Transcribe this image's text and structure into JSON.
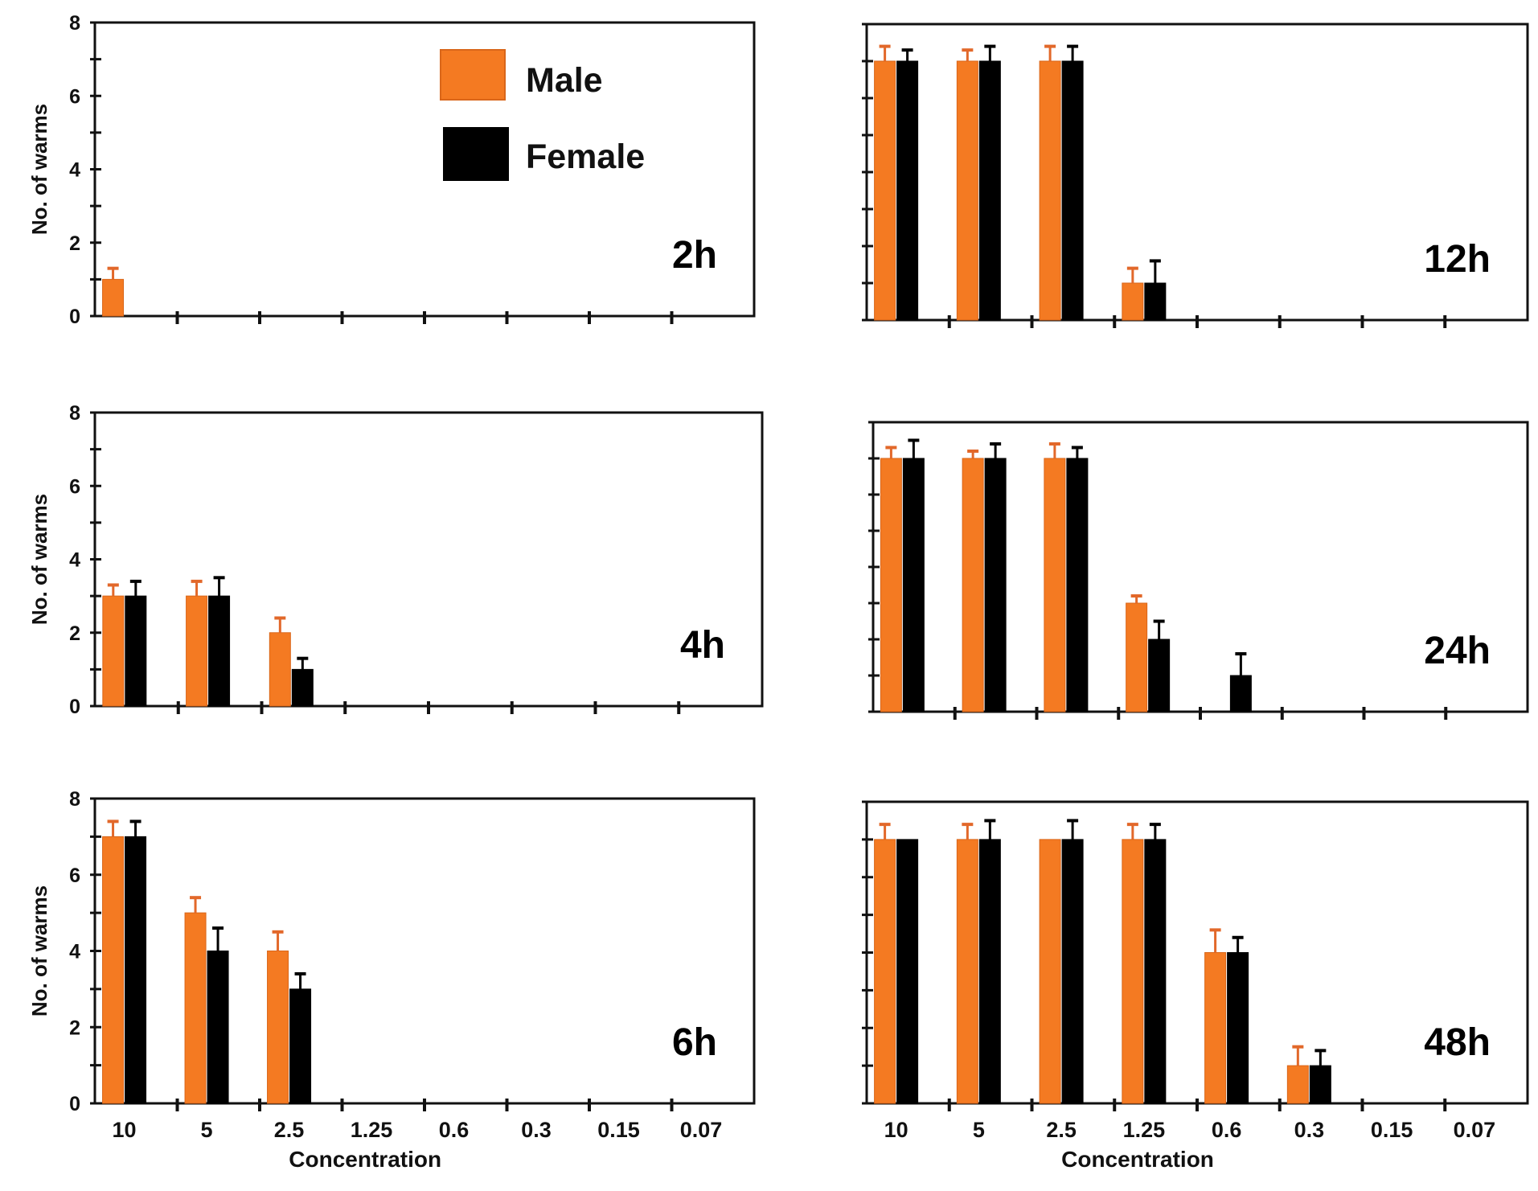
{
  "chart_data": [
    {
      "type": "bar",
      "title": "2h",
      "ylabel": "No. of warms",
      "xlabel": "",
      "ylim": [
        0,
        8
      ],
      "yticks": [
        "0",
        "2",
        "4",
        "6",
        "8"
      ],
      "categories": [
        "10",
        "5",
        "2.5",
        "1.25",
        "0.6",
        "0.3",
        "0.15",
        "0.07"
      ],
      "show_category_labels": false,
      "series": [
        {
          "name": "Male",
          "values": [
            1,
            0,
            0,
            0,
            0,
            0,
            0,
            0
          ],
          "errors": [
            0.3,
            0,
            0,
            0,
            0,
            0,
            0,
            0
          ]
        },
        {
          "name": "Female",
          "values": [
            0,
            0,
            0,
            0,
            0,
            0,
            0,
            0
          ],
          "errors": [
            0,
            0,
            0,
            0,
            0,
            0,
            0,
            0
          ]
        }
      ]
    },
    {
      "type": "bar",
      "title": "12h",
      "ylabel": "",
      "xlabel": "",
      "ylim": [
        0,
        8
      ],
      "yticks": [],
      "categories": [
        "10",
        "5",
        "2.5",
        "1.25",
        "0.6",
        "0.3",
        "0.15",
        "0.07"
      ],
      "show_category_labels": false,
      "series": [
        {
          "name": "Male",
          "values": [
            7,
            7,
            7,
            1,
            0,
            0,
            0,
            0
          ],
          "errors": [
            0.4,
            0.3,
            0.4,
            0.4,
            0,
            0,
            0,
            0
          ]
        },
        {
          "name": "Female",
          "values": [
            7,
            7,
            7,
            1,
            0,
            0,
            0,
            0
          ],
          "errors": [
            0.3,
            0.4,
            0.4,
            0.6,
            0,
            0,
            0,
            0
          ]
        }
      ]
    },
    {
      "type": "bar",
      "title": "4h",
      "ylabel": "No. of warms",
      "xlabel": "",
      "ylim": [
        0,
        8
      ],
      "yticks": [
        "0",
        "2",
        "4",
        "6",
        "8"
      ],
      "categories": [
        "10",
        "5",
        "2.5",
        "1.25",
        "0.6",
        "0.3",
        "0.15",
        "0.07"
      ],
      "show_category_labels": false,
      "series": [
        {
          "name": "Male",
          "values": [
            3,
            3,
            2,
            0,
            0,
            0,
            0,
            0
          ],
          "errors": [
            0.3,
            0.4,
            0.4,
            0,
            0,
            0,
            0,
            0
          ]
        },
        {
          "name": "Female",
          "values": [
            3,
            3,
            1,
            0,
            0,
            0,
            0,
            0
          ],
          "errors": [
            0.4,
            0.5,
            0.3,
            0,
            0,
            0,
            0,
            0
          ]
        }
      ]
    },
    {
      "type": "bar",
      "title": "24h",
      "ylabel": "",
      "xlabel": "",
      "ylim": [
        0,
        8
      ],
      "yticks": [],
      "categories": [
        "10",
        "5",
        "2.5",
        "1.25",
        "0.6",
        "0.3",
        "0.15",
        "0.07"
      ],
      "show_category_labels": false,
      "series": [
        {
          "name": "Male",
          "values": [
            7,
            7,
            7,
            3,
            0,
            0,
            0,
            0
          ],
          "errors": [
            0.3,
            0.2,
            0.4,
            0.2,
            0,
            0,
            0,
            0
          ]
        },
        {
          "name": "Female",
          "values": [
            7,
            7,
            7,
            2,
            1,
            0,
            0,
            0
          ],
          "errors": [
            0.5,
            0.4,
            0.3,
            0.5,
            0.6,
            0,
            0,
            0
          ]
        }
      ]
    },
    {
      "type": "bar",
      "title": "6h",
      "ylabel": "No. of warms",
      "xlabel": "Concentration",
      "ylim": [
        0,
        8
      ],
      "yticks": [
        "0",
        "2",
        "4",
        "6",
        "8"
      ],
      "categories": [
        "10",
        "5",
        "2.5",
        "1.25",
        "0.6",
        "0.3",
        "0.15",
        "0.07"
      ],
      "show_category_labels": true,
      "series": [
        {
          "name": "Male",
          "values": [
            7,
            5,
            4,
            0,
            0,
            0,
            0,
            0
          ],
          "errors": [
            0.4,
            0.4,
            0.5,
            0,
            0,
            0,
            0,
            0
          ]
        },
        {
          "name": "Female",
          "values": [
            7,
            4,
            3,
            0,
            0,
            0,
            0,
            0
          ],
          "errors": [
            0.4,
            0.6,
            0.4,
            0,
            0,
            0,
            0,
            0
          ]
        }
      ]
    },
    {
      "type": "bar",
      "title": "48h",
      "ylabel": "",
      "xlabel": "Concentration",
      "ylim": [
        0,
        8
      ],
      "yticks": [],
      "categories": [
        "10",
        "5",
        "2.5",
        "1.25",
        "0.6",
        "0.3",
        "0.15",
        "0.07"
      ],
      "show_category_labels": true,
      "series": [
        {
          "name": "Male",
          "values": [
            7,
            7,
            7,
            7,
            4,
            1,
            0,
            0
          ],
          "errors": [
            0.4,
            0.4,
            0,
            0.4,
            0.6,
            0.5,
            0,
            0
          ]
        },
        {
          "name": "Female",
          "values": [
            7,
            7,
            7,
            7,
            4,
            1,
            0,
            0
          ],
          "errors": [
            0,
            0.5,
            0.5,
            0.4,
            0.4,
            0.4,
            0,
            0
          ]
        }
      ]
    }
  ],
  "legend": {
    "items": [
      {
        "label": "Male",
        "color": "#f47a22"
      },
      {
        "label": "Female",
        "color": "#000000"
      }
    ]
  },
  "colors": {
    "male": "#f47a22",
    "female": "#000000",
    "axis": "#111111"
  }
}
